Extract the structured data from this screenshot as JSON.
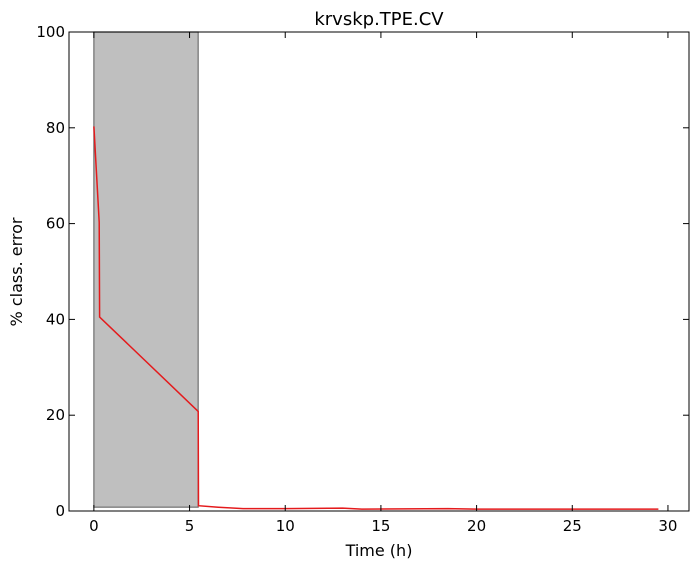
{
  "chart_data": {
    "type": "line",
    "title": "krvskp.TPE.CV",
    "xlabel": "Time (h)",
    "ylabel": "% class. error",
    "xlim": [
      -1.3,
      31.1
    ],
    "ylim": [
      0,
      100
    ],
    "xticks": [
      0,
      5,
      10,
      15,
      20,
      25,
      30
    ],
    "yticks": [
      0,
      20,
      40,
      60,
      80,
      100
    ],
    "grid": false,
    "shaded_region": {
      "x": [
        0,
        5.45
      ],
      "y": [
        0.8,
        100
      ],
      "color": "#bfbfbf"
    },
    "series": [
      {
        "color": "#e41a1c",
        "x": [
          0,
          0.28,
          0.3,
          5.45,
          5.47,
          6.5,
          7.8,
          10,
          13,
          14,
          18.5,
          20,
          29.5
        ],
        "y": [
          80.3,
          60.3,
          40.5,
          20.8,
          1.1,
          0.8,
          0.5,
          0.5,
          0.6,
          0.4,
          0.5,
          0.4,
          0.4
        ]
      }
    ]
  }
}
